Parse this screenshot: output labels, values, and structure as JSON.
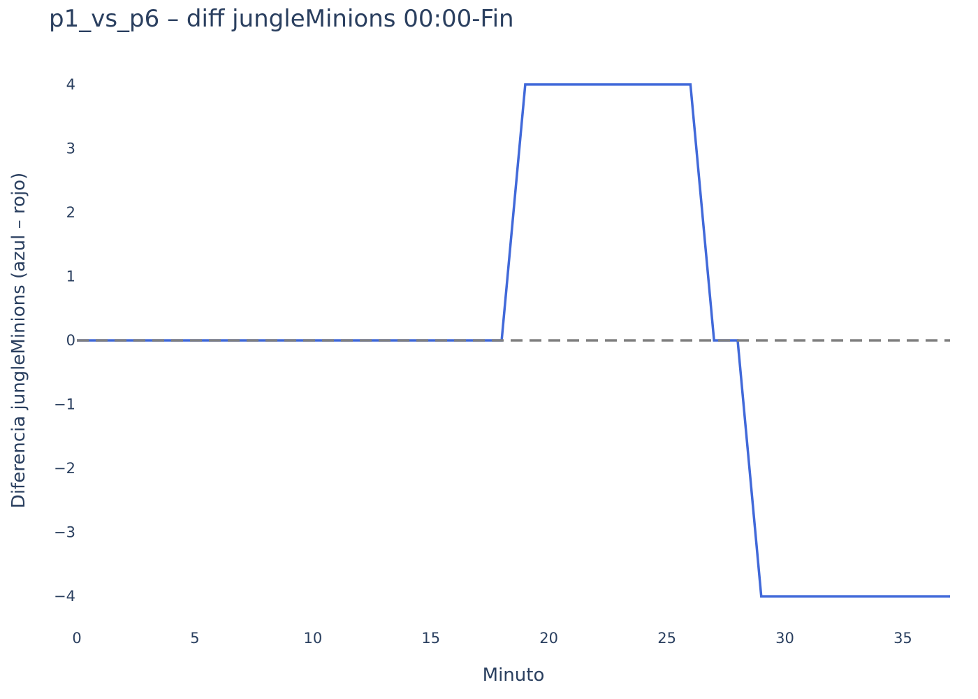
{
  "chart_data": {
    "type": "line",
    "title": "p1_vs_p6 – diff jungleMinions 00:00-Fin",
    "xlabel": "Minuto",
    "ylabel": "Diferencia jungleMinions (azul – rojo)",
    "xlim": [
      0,
      37
    ],
    "ylim": [
      -4.37,
      4.37
    ],
    "x_ticks": [
      0,
      5,
      10,
      15,
      20,
      25,
      30,
      35
    ],
    "x_tick_labels": [
      "0",
      "5",
      "10",
      "15",
      "20",
      "25",
      "30",
      "35"
    ],
    "y_ticks": [
      4,
      3,
      2,
      1,
      0,
      -1,
      -2,
      -3,
      -4
    ],
    "y_tick_labels": [
      "4",
      "3",
      "2",
      "1",
      "0",
      "−1",
      "−2",
      "−3",
      "−4"
    ],
    "grid": false,
    "series": [
      {
        "color": "#4169d9",
        "x": [
          0,
          1,
          2,
          3,
          4,
          5,
          6,
          7,
          8,
          9,
          10,
          11,
          12,
          13,
          14,
          15,
          16,
          17,
          18,
          19,
          20,
          21,
          22,
          23,
          24,
          25,
          26,
          27,
          28,
          29,
          30,
          31,
          32,
          33,
          34,
          35,
          36,
          37
        ],
        "y": [
          0,
          0,
          0,
          0,
          0,
          0,
          0,
          0,
          0,
          0,
          0,
          0,
          0,
          0,
          0,
          0,
          0,
          0,
          0,
          4,
          4,
          4,
          4,
          4,
          4,
          4,
          4,
          0,
          0,
          -4,
          -4,
          -4,
          -4,
          -4,
          -4,
          -4,
          -4,
          -4
        ]
      }
    ],
    "reference_line": {
      "y": 0,
      "style": "dashed",
      "color": "#808080"
    }
  }
}
